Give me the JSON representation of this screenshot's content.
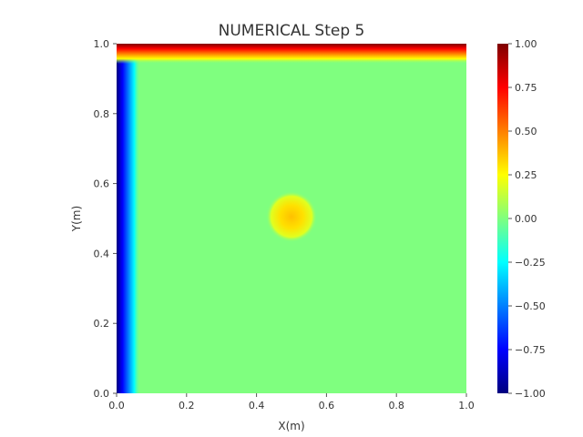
{
  "chart_data": {
    "type": "heatmap",
    "title": "NUMERICAL Step 5",
    "xlabel": "X(m)",
    "ylabel": "Y(m)",
    "xlim": [
      0.0,
      1.0
    ],
    "ylim": [
      0.0,
      1.0
    ],
    "x_ticks": [
      "0.0",
      "0.2",
      "0.4",
      "0.6",
      "0.8",
      "1.0"
    ],
    "y_ticks": [
      "0.0",
      "0.2",
      "0.4",
      "0.6",
      "0.8",
      "1.0"
    ],
    "colormap": "jet",
    "value_range": [
      -1.0,
      1.0
    ],
    "colorbar_ticks": [
      "1.00",
      "0.75",
      "0.50",
      "0.25",
      "0.00",
      "−0.25",
      "−0.50",
      "−0.75",
      "−1.00"
    ],
    "field": {
      "background_value": 0.0,
      "top_boundary_value": 1.0,
      "left_boundary_value": -1.0,
      "center_blob": {
        "x": 0.5,
        "y": 0.5,
        "peak_value": 0.3
      }
    },
    "grid": false,
    "colorbar_placement": "right"
  }
}
